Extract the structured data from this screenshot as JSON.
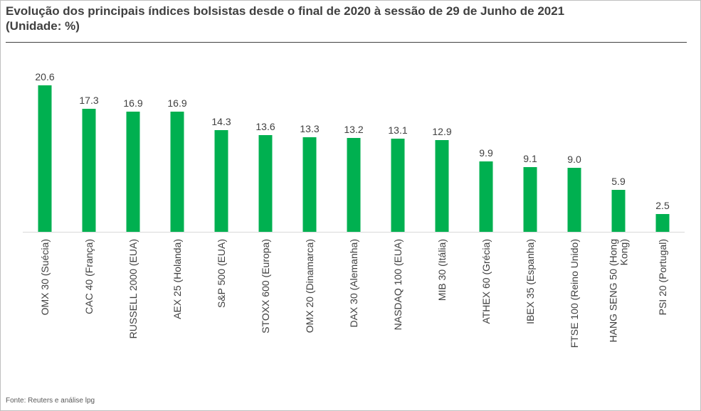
{
  "header": {
    "title_line1": "Evolução dos principais índices bolsistas desde o final de 2020 à sessão de 29 de Junho de 2021",
    "title_line2": "(Unidade: %)"
  },
  "footer": {
    "source": "Fonte: Reuters e análise lpg"
  },
  "chart_data": {
    "type": "bar",
    "title": "Evolução dos principais índices bolsistas desde o final de 2020 à sessão de 29 de Junho de 2021",
    "categories": [
      "OMX 30 (Suécia)",
      "CAC 40 (França)",
      "RUSSELL 2000 (EUA)",
      "AEX 25 (Holanda)",
      "S&P 500 (EUA)",
      "STOXX 600 (Europa)",
      "OMX 20 (Dinamarca)",
      "DAX 30 (Alemanha)",
      "NASDAQ 100 (EUA)",
      "MIB 30 (Itália)",
      "ATHEX 60 (Grécia)",
      "IBEX 35 (Espanha)",
      "FTSE 100 (Reino Unido)",
      "HANG SENG 50 (Hong Kong)",
      "PSI 20 (Portugal)"
    ],
    "category_lines": [
      [
        "OMX 30 (Suécia)"
      ],
      [
        "CAC 40 (França)"
      ],
      [
        "RUSSELL 2000 (EUA)"
      ],
      [
        "AEX 25 (Holanda)"
      ],
      [
        "S&P 500 (EUA)"
      ],
      [
        "STOXX 600 (Europa)"
      ],
      [
        "OMX 20 (Dinamarca)"
      ],
      [
        "DAX 30 (Alemanha)"
      ],
      [
        "NASDAQ 100 (EUA)"
      ],
      [
        "MIB 30 (Itália)"
      ],
      [
        "ATHEX 60 (Grécia)"
      ],
      [
        "IBEX 35 (Espanha)"
      ],
      [
        "FTSE 100 (Reino Unido)"
      ],
      [
        "HANG SENG 50 (Hong",
        "Kong)"
      ],
      [
        "PSI 20 (Portugal)"
      ]
    ],
    "values": [
      20.6,
      17.3,
      16.9,
      16.9,
      14.3,
      13.6,
      13.3,
      13.2,
      13.1,
      12.9,
      9.9,
      9.1,
      9.0,
      5.9,
      2.5
    ],
    "value_labels": [
      "20.6",
      "17.3",
      "16.9",
      "16.9",
      "14.3",
      "13.6",
      "13.3",
      "13.2",
      "13.1",
      "12.9",
      "9.9",
      "9.1",
      "9.0",
      "5.9",
      "2.5"
    ],
    "ylim": [
      0,
      20.6
    ],
    "bar_color": "#00B050",
    "grid": false,
    "legend": "none"
  }
}
